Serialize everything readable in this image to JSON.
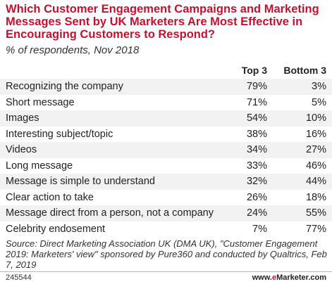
{
  "chart_data": {
    "type": "table",
    "title": "Which Customer Engagement Campaigns and Marketing Messages Sent by UK Marketers Are Most Effective in Encouraging Customers to Respond?",
    "subtitle": "% of respondents, Nov 2018",
    "columns": [
      "Top 3",
      "Bottom 3"
    ],
    "rows": [
      {
        "label": "Recognizing the company",
        "top3": "79%",
        "bottom3": "3%"
      },
      {
        "label": "Short message",
        "top3": "71%",
        "bottom3": "5%"
      },
      {
        "label": "Images",
        "top3": "54%",
        "bottom3": "10%"
      },
      {
        "label": "Interesting subject/topic",
        "top3": "38%",
        "bottom3": "16%"
      },
      {
        "label": "Videos",
        "top3": "34%",
        "bottom3": "27%"
      },
      {
        "label": "Long message",
        "top3": "33%",
        "bottom3": "46%"
      },
      {
        "label": "Message is simple to understand",
        "top3": "32%",
        "bottom3": "44%"
      },
      {
        "label": "Clear action to take",
        "top3": "26%",
        "bottom3": "18%"
      },
      {
        "label": "Message direct from a person, not a company",
        "top3": "24%",
        "bottom3": "55%"
      },
      {
        "label": "Celebrity endosement",
        "top3": "7%",
        "bottom3": "77%"
      }
    ],
    "source": "Source: Direct Marketing Association UK (DMA UK), \"Customer Engagement 2019: Marketers' view\" sponsored by Pure360 and conducted by Qualtrics, Feb 7, 2019"
  },
  "footer": {
    "id": "245544",
    "brand_prefix": "www.",
    "brand_e": "e",
    "brand_suffix": "Marketer.com"
  },
  "colors": {
    "title": "#c8102e",
    "row_stripe": "#f2f2f2"
  }
}
